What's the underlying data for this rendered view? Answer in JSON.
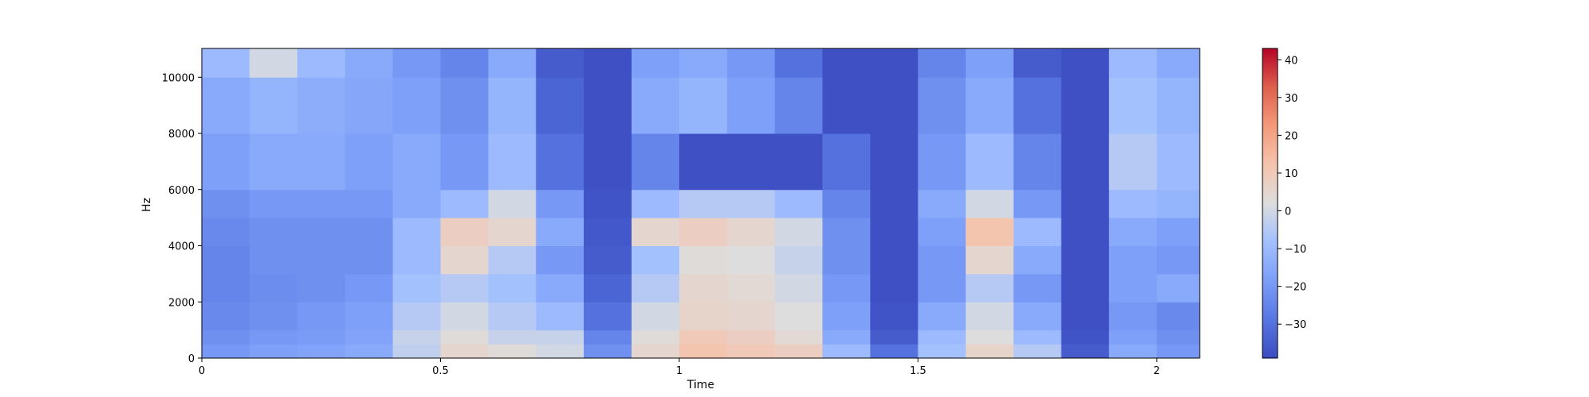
{
  "chart_data": {
    "type": "heatmap",
    "title": "",
    "xlabel": "Time",
    "ylabel": "Hz",
    "xlim": [
      0,
      2.09
    ],
    "ylim": [
      0,
      11025
    ],
    "x_ticks": [
      0,
      0.5,
      1,
      1.5,
      2
    ],
    "x_tick_labels": [
      "0",
      "0.5",
      "1",
      "1.5",
      "2"
    ],
    "y_ticks": [
      0,
      2000,
      4000,
      6000,
      8000,
      10000
    ],
    "y_tick_labels": [
      "0",
      "2000",
      "4000",
      "6000",
      "8000",
      "10000"
    ],
    "colormap": "coolwarm",
    "colorbar": {
      "range": [
        -39,
        43
      ],
      "ticks": [
        -30,
        -20,
        -10,
        0,
        10,
        20,
        30,
        40
      ],
      "tick_labels": [
        "−30",
        "−20",
        "−10",
        "0",
        "10",
        "20",
        "30",
        "40"
      ]
    },
    "colors": {
      "low": "#3b4cc0",
      "mid": "#dddddd",
      "high": "#b40426"
    },
    "time_bins": [
      0.0,
      0.1,
      0.2,
      0.3,
      0.4,
      0.5,
      0.6,
      0.7,
      0.8,
      0.9,
      1.0,
      1.1,
      1.2,
      1.3,
      1.4,
      1.5,
      1.6,
      1.7,
      1.8,
      1.9,
      2.0
    ],
    "freq_bins_hz": [
      0,
      500,
      1000,
      2000,
      3000,
      4000,
      5000,
      6000,
      8000,
      10000
    ],
    "values_db": [
      [
        -20,
        -18,
        -17,
        -15,
        -3,
        5,
        3,
        0,
        -22,
        5,
        12,
        10,
        8,
        -10,
        -30,
        -8,
        6,
        -5,
        -35,
        -15,
        -20
      ],
      [
        -22,
        -20,
        -19,
        -17,
        -2,
        3,
        -2,
        -2,
        -25,
        3,
        10,
        8,
        4,
        -15,
        -35,
        -10,
        2,
        -10,
        -37,
        -18,
        -22
      ],
      [
        -24,
        -22,
        -20,
        -18,
        -5,
        0,
        -5,
        -10,
        -30,
        0,
        6,
        5,
        2,
        -18,
        -37,
        -15,
        0,
        -15,
        -38,
        -20,
        -24
      ],
      [
        -25,
        -23,
        -22,
        -20,
        -8,
        -5,
        -8,
        -15,
        -33,
        -5,
        5,
        4,
        0,
        -20,
        -38,
        -20,
        -5,
        -20,
        -38,
        -18,
        -15
      ],
      [
        -25,
        -22,
        -22,
        -22,
        -10,
        5,
        -5,
        -20,
        -35,
        -8,
        3,
        2,
        -2,
        -22,
        -38,
        -20,
        5,
        -15,
        -38,
        -18,
        -20
      ],
      [
        -24,
        -22,
        -22,
        -22,
        -10,
        8,
        5,
        -15,
        -36,
        5,
        8,
        5,
        0,
        -22,
        -38,
        -18,
        12,
        -10,
        -38,
        -15,
        -18
      ],
      [
        -22,
        -20,
        -20,
        -20,
        -15,
        -10,
        0,
        -20,
        -37,
        -10,
        -5,
        -5,
        -10,
        -25,
        -38,
        -15,
        0,
        -20,
        -38,
        -10,
        -12
      ],
      [
        -18,
        -15,
        -15,
        -18,
        -15,
        -20,
        -10,
        -30,
        -38,
        -25,
        -38,
        -38,
        -38,
        -30,
        -38,
        -20,
        -10,
        -25,
        -38,
        -5,
        -10
      ],
      [
        -15,
        -12,
        -14,
        -16,
        -18,
        -22,
        -12,
        -33,
        -38,
        -15,
        -12,
        -18,
        -25,
        -38,
        -38,
        -22,
        -15,
        -30,
        -38,
        -8,
        -12
      ],
      [
        -10,
        0,
        -10,
        -15,
        -20,
        -25,
        -15,
        -35,
        -38,
        -18,
        -15,
        -20,
        -30,
        -38,
        -38,
        -25,
        -18,
        -35,
        -38,
        -10,
        -15
      ]
    ]
  }
}
